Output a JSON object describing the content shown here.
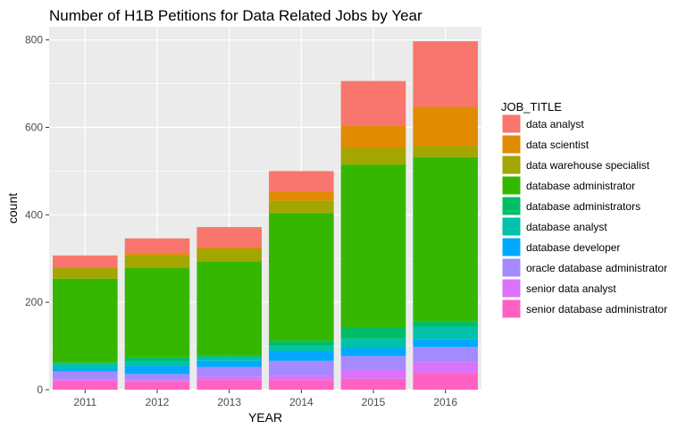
{
  "chart_data": {
    "type": "bar",
    "stacked": true,
    "title": "Number of H1B Petitions for Data Related Jobs by Year",
    "xlabel": "YEAR",
    "ylabel": "count",
    "ylim": [
      0,
      830
    ],
    "yticks": [
      0,
      200,
      400,
      600,
      800
    ],
    "grid": true,
    "legend": {
      "title": "JOB_TITLE",
      "position": "right"
    },
    "categories": [
      "2011",
      "2012",
      "2013",
      "2014",
      "2015",
      "2016"
    ],
    "series": [
      {
        "name": "senior database administrator",
        "color": "#FF61C3",
        "values": [
          20,
          18,
          22,
          22,
          25,
          38
        ]
      },
      {
        "name": "senior data analyst",
        "color": "#DB72FB",
        "values": [
          4,
          4,
          8,
          10,
          22,
          25
        ]
      },
      {
        "name": "oracle database administrator",
        "color": "#A58AFF",
        "values": [
          18,
          14,
          22,
          34,
          30,
          35
        ]
      },
      {
        "name": "database developer",
        "color": "#00A9FF",
        "values": [
          6,
          18,
          14,
          22,
          18,
          18
        ]
      },
      {
        "name": "database analyst",
        "color": "#00C1A9",
        "values": [
          12,
          10,
          8,
          12,
          22,
          28
        ]
      },
      {
        "name": "database administrators",
        "color": "#00BE67",
        "values": [
          2,
          10,
          5,
          12,
          25,
          13
        ]
      },
      {
        "name": "database administrator",
        "color": "#35B700",
        "values": [
          192,
          204,
          215,
          292,
          373,
          375
        ]
      },
      {
        "name": "data warehouse specialist",
        "color": "#A3A500",
        "values": [
          24,
          30,
          28,
          28,
          38,
          25
        ]
      },
      {
        "name": "data scientist",
        "color": "#E08B00",
        "values": [
          2,
          4,
          4,
          20,
          50,
          90
        ]
      },
      {
        "name": "data analyst",
        "color": "#F8766D",
        "values": [
          27,
          34,
          46,
          48,
          103,
          150
        ]
      }
    ]
  }
}
